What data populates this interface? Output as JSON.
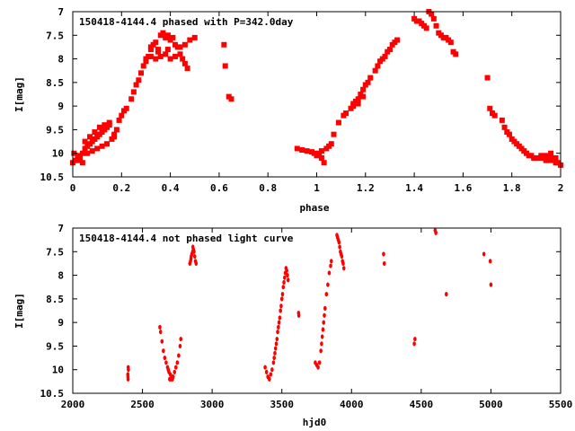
{
  "chart_data": [
    {
      "type": "scatter",
      "title": "150418-4144.4 phased with P=342.0day",
      "xlabel": "phase",
      "ylabel": "I[mag]",
      "xlim": [
        0,
        2
      ],
      "ylim": [
        10.5,
        7
      ],
      "y_inverted": true,
      "grid": false,
      "marker_color": "#ff0000",
      "marker": "filled-square",
      "x_ticks": [
        0,
        0.2,
        0.4,
        0.6,
        0.8,
        1,
        1.2,
        1.4,
        1.6,
        1.8,
        2
      ],
      "x_tick_labels": [
        "0",
        "0.2",
        "0.4",
        "0.6",
        "0.8",
        "1",
        "1.2",
        "1.4",
        "1.6",
        "1.8",
        "2"
      ],
      "y_ticks": [
        7,
        7.5,
        8,
        8.5,
        9,
        9.5,
        10,
        10.5
      ],
      "y_tick_labels": [
        "7",
        "7.5",
        "8",
        "8.5",
        "9",
        "9.5",
        "10",
        "10.5"
      ],
      "points": [
        [
          0.0,
          10.2
        ],
        [
          0.01,
          10.15
        ],
        [
          0.02,
          10.05
        ],
        [
          0.03,
          10.1
        ],
        [
          0.04,
          10.0
        ],
        [
          0.05,
          9.9
        ],
        [
          0.06,
          9.85
        ],
        [
          0.07,
          9.8
        ],
        [
          0.08,
          9.75
        ],
        [
          0.09,
          9.7
        ],
        [
          0.1,
          9.65
        ],
        [
          0.11,
          9.6
        ],
        [
          0.12,
          9.55
        ],
        [
          0.13,
          9.5
        ],
        [
          0.14,
          9.45
        ],
        [
          0.15,
          9.4
        ],
        [
          0.005,
          10.0
        ],
        [
          0.02,
          10.15
        ],
        [
          0.04,
          10.2
        ],
        [
          0.06,
          10.0
        ],
        [
          0.08,
          9.95
        ],
        [
          0.1,
          9.9
        ],
        [
          0.12,
          9.85
        ],
        [
          0.14,
          9.8
        ],
        [
          0.16,
          9.7
        ],
        [
          0.17,
          9.6
        ],
        [
          0.05,
          9.75
        ],
        [
          0.07,
          9.65
        ],
        [
          0.09,
          9.55
        ],
        [
          0.11,
          9.45
        ],
        [
          0.13,
          9.4
        ],
        [
          0.15,
          9.35
        ],
        [
          0.17,
          9.65
        ],
        [
          0.18,
          9.5
        ],
        [
          0.19,
          9.3
        ],
        [
          0.2,
          9.2
        ],
        [
          0.21,
          9.1
        ],
        [
          0.22,
          9.05
        ],
        [
          0.24,
          8.85
        ],
        [
          0.25,
          8.7
        ],
        [
          0.26,
          8.55
        ],
        [
          0.27,
          8.45
        ],
        [
          0.28,
          8.3
        ],
        [
          0.29,
          8.15
        ],
        [
          0.3,
          8.05
        ],
        [
          0.31,
          7.95
        ],
        [
          0.32,
          7.8
        ],
        [
          0.33,
          7.7
        ],
        [
          0.34,
          7.65
        ],
        [
          0.35,
          7.8
        ],
        [
          0.36,
          7.5
        ],
        [
          0.37,
          7.45
        ],
        [
          0.38,
          7.55
        ],
        [
          0.39,
          7.5
        ],
        [
          0.4,
          7.6
        ],
        [
          0.41,
          7.55
        ],
        [
          0.42,
          7.7
        ],
        [
          0.43,
          7.75
        ],
        [
          0.44,
          7.9
        ],
        [
          0.45,
          8.0
        ],
        [
          0.46,
          8.1
        ],
        [
          0.47,
          8.2
        ],
        [
          0.3,
          8.0
        ],
        [
          0.32,
          7.95
        ],
        [
          0.34,
          8.0
        ],
        [
          0.36,
          7.95
        ],
        [
          0.38,
          7.9
        ],
        [
          0.4,
          8.0
        ],
        [
          0.42,
          7.95
        ],
        [
          0.44,
          7.75
        ],
        [
          0.46,
          7.7
        ],
        [
          0.48,
          7.6
        ],
        [
          0.5,
          7.55
        ],
        [
          0.32,
          7.75
        ],
        [
          0.35,
          7.85
        ],
        [
          0.39,
          7.8
        ],
        [
          0.62,
          7.7
        ],
        [
          0.625,
          8.15
        ],
        [
          0.64,
          8.8
        ],
        [
          0.65,
          8.85
        ],
        [
          0.92,
          9.9
        ],
        [
          0.94,
          9.93
        ],
        [
          0.96,
          9.95
        ],
        [
          0.98,
          9.97
        ],
        [
          0.99,
          10.0
        ],
        [
          1.0,
          10.05
        ],
        [
          1.02,
          10.1
        ],
        [
          1.03,
          10.2
        ],
        [
          1.01,
          10.0
        ],
        [
          1.02,
          9.95
        ],
        [
          1.04,
          9.9
        ],
        [
          1.05,
          9.85
        ],
        [
          1.06,
          9.8
        ],
        [
          1.07,
          9.6
        ],
        [
          1.09,
          9.35
        ],
        [
          1.11,
          9.2
        ],
        [
          1.12,
          9.15
        ],
        [
          1.14,
          9.05
        ],
        [
          1.15,
          8.95
        ],
        [
          1.16,
          8.9
        ],
        [
          1.17,
          8.85
        ],
        [
          1.18,
          8.75
        ],
        [
          1.19,
          8.65
        ],
        [
          1.2,
          8.55
        ],
        [
          1.21,
          8.5
        ],
        [
          1.22,
          8.4
        ],
        [
          1.24,
          8.25
        ],
        [
          1.25,
          8.15
        ],
        [
          1.26,
          8.05
        ],
        [
          1.27,
          8.0
        ],
        [
          1.28,
          7.95
        ],
        [
          1.29,
          7.85
        ],
        [
          1.3,
          7.8
        ],
        [
          1.31,
          7.7
        ],
        [
          1.32,
          7.65
        ],
        [
          1.33,
          7.6
        ],
        [
          1.15,
          9.0
        ],
        [
          1.17,
          8.95
        ],
        [
          1.19,
          8.8
        ],
        [
          1.4,
          7.15
        ],
        [
          1.41,
          7.2
        ],
        [
          1.42,
          7.2
        ],
        [
          1.43,
          7.25
        ],
        [
          1.44,
          7.3
        ],
        [
          1.45,
          7.35
        ],
        [
          1.46,
          7.0
        ],
        [
          1.47,
          7.05
        ],
        [
          1.48,
          7.15
        ],
        [
          1.49,
          7.3
        ],
        [
          1.5,
          7.45
        ],
        [
          1.51,
          7.5
        ],
        [
          1.52,
          7.55
        ],
        [
          1.53,
          7.55
        ],
        [
          1.54,
          7.6
        ],
        [
          1.55,
          7.65
        ],
        [
          1.56,
          7.85
        ],
        [
          1.57,
          7.9
        ],
        [
          1.7,
          8.4
        ],
        [
          1.71,
          9.05
        ],
        [
          1.72,
          9.15
        ],
        [
          1.73,
          9.2
        ],
        [
          1.76,
          9.3
        ],
        [
          1.77,
          9.45
        ],
        [
          1.78,
          9.55
        ],
        [
          1.79,
          9.6
        ],
        [
          1.8,
          9.7
        ],
        [
          1.81,
          9.75
        ],
        [
          1.82,
          9.8
        ],
        [
          1.83,
          9.85
        ],
        [
          1.84,
          9.9
        ],
        [
          1.85,
          9.95
        ],
        [
          1.86,
          10.0
        ],
        [
          1.87,
          10.05
        ],
        [
          1.88,
          10.05
        ],
        [
          1.89,
          10.1
        ],
        [
          1.9,
          10.1
        ],
        [
          1.91,
          10.1
        ],
        [
          1.92,
          10.05
        ],
        [
          1.93,
          10.1
        ],
        [
          1.94,
          10.15
        ],
        [
          1.95,
          10.15
        ],
        [
          1.96,
          10.1
        ],
        [
          1.97,
          10.15
        ],
        [
          1.98,
          10.2
        ],
        [
          1.99,
          10.2
        ],
        [
          2.0,
          10.25
        ],
        [
          1.96,
          10.0
        ],
        [
          1.98,
          10.1
        ],
        [
          1.94,
          10.05
        ]
      ]
    },
    {
      "type": "scatter",
      "title": "150418-4144.4 not phased light curve",
      "xlabel": "hjd0",
      "ylabel": "I[mag]",
      "xlim": [
        2000,
        5500
      ],
      "ylim": [
        10.5,
        7
      ],
      "y_inverted": true,
      "grid": false,
      "marker_color": "#ff0000",
      "marker": "filled-circle",
      "x_ticks": [
        2000,
        2500,
        3000,
        3500,
        4000,
        4500,
        5000,
        5500
      ],
      "x_tick_labels": [
        "2000",
        "2500",
        "3000",
        "3500",
        "4000",
        "4500",
        "5000",
        "5500"
      ],
      "y_ticks": [
        7,
        7.5,
        8,
        8.5,
        9,
        9.5,
        10,
        10.5
      ],
      "y_tick_labels": [
        "7",
        "7.5",
        "8",
        "8.5",
        "9",
        "9.5",
        "10",
        "10.5"
      ],
      "points": [
        [
          2395,
          10.1
        ],
        [
          2396,
          10.15
        ],
        [
          2397,
          10.2
        ],
        [
          2398,
          9.95
        ],
        [
          2399,
          10.0
        ],
        [
          2625,
          9.1
        ],
        [
          2630,
          9.2
        ],
        [
          2640,
          9.4
        ],
        [
          2650,
          9.6
        ],
        [
          2660,
          9.75
        ],
        [
          2670,
          9.85
        ],
        [
          2680,
          9.95
        ],
        [
          2690,
          10.05
        ],
        [
          2700,
          10.1
        ],
        [
          2710,
          10.15
        ],
        [
          2715,
          10.2
        ],
        [
          2720,
          10.15
        ],
        [
          2730,
          10.05
        ],
        [
          2740,
          9.95
        ],
        [
          2750,
          9.85
        ],
        [
          2760,
          9.7
        ],
        [
          2770,
          9.5
        ],
        [
          2775,
          9.35
        ],
        [
          2695,
          10.2
        ],
        [
          2705,
          10.2
        ],
        [
          2685,
          10.0
        ],
        [
          2840,
          7.75
        ],
        [
          2845,
          7.7
        ],
        [
          2850,
          7.6
        ],
        [
          2855,
          7.55
        ],
        [
          2860,
          7.5
        ],
        [
          2865,
          7.45
        ],
        [
          2870,
          7.5
        ],
        [
          2875,
          7.6
        ],
        [
          2880,
          7.7
        ],
        [
          2885,
          7.75
        ],
        [
          2848,
          7.65
        ],
        [
          2862,
          7.4
        ],
        [
          3380,
          9.95
        ],
        [
          3390,
          10.05
        ],
        [
          3400,
          10.15
        ],
        [
          3410,
          10.2
        ],
        [
          3420,
          10.1
        ],
        [
          3430,
          10.0
        ],
        [
          3440,
          9.85
        ],
        [
          3450,
          9.65
        ],
        [
          3460,
          9.45
        ],
        [
          3470,
          9.2
        ],
        [
          3480,
          9.0
        ],
        [
          3490,
          8.75
        ],
        [
          3500,
          8.5
        ],
        [
          3510,
          8.25
        ],
        [
          3520,
          8.05
        ],
        [
          3525,
          7.95
        ],
        [
          3530,
          7.85
        ],
        [
          3535,
          7.9
        ],
        [
          3540,
          8.0
        ],
        [
          3545,
          8.1
        ],
        [
          3515,
          8.15
        ],
        [
          3505,
          8.4
        ],
        [
          3495,
          8.65
        ],
        [
          3485,
          8.9
        ],
        [
          3475,
          9.1
        ],
        [
          3465,
          9.35
        ],
        [
          3455,
          9.55
        ],
        [
          3445,
          9.75
        ],
        [
          3620,
          8.8
        ],
        [
          3622,
          8.85
        ],
        [
          3740,
          9.85
        ],
        [
          3750,
          9.9
        ],
        [
          3760,
          9.95
        ],
        [
          3770,
          9.85
        ],
        [
          3780,
          9.6
        ],
        [
          3790,
          9.3
        ],
        [
          3800,
          9.0
        ],
        [
          3810,
          8.7
        ],
        [
          3820,
          8.4
        ],
        [
          3830,
          8.2
        ],
        [
          3840,
          7.95
        ],
        [
          3850,
          7.8
        ],
        [
          3855,
          7.7
        ],
        [
          3785,
          9.45
        ],
        [
          3795,
          9.15
        ],
        [
          3805,
          8.85
        ],
        [
          3895,
          7.15
        ],
        [
          3900,
          7.2
        ],
        [
          3905,
          7.25
        ],
        [
          3910,
          7.3
        ],
        [
          3915,
          7.4
        ],
        [
          3920,
          7.5
        ],
        [
          3925,
          7.55
        ],
        [
          3930,
          7.6
        ],
        [
          3940,
          7.75
        ],
        [
          3945,
          7.85
        ],
        [
          3935,
          7.7
        ],
        [
          4230,
          7.55
        ],
        [
          4235,
          7.75
        ],
        [
          4450,
          9.45
        ],
        [
          4455,
          9.35
        ],
        [
          4600,
          7.05
        ],
        [
          4605,
          7.1
        ],
        [
          4680,
          8.4
        ],
        [
          4950,
          7.55
        ],
        [
          4995,
          7.7
        ],
        [
          5000,
          8.2
        ]
      ]
    }
  ]
}
